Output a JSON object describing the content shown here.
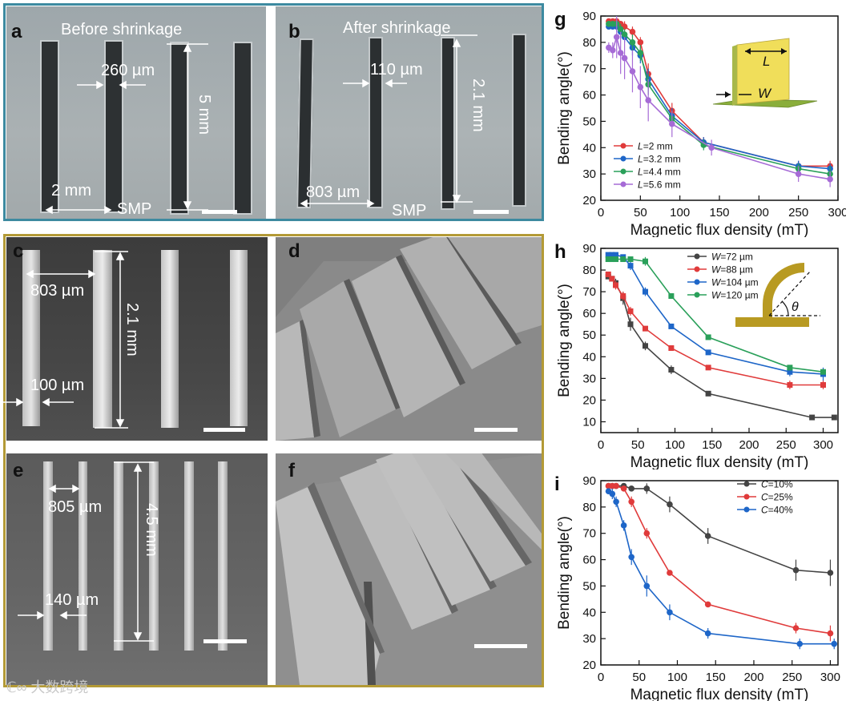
{
  "panels": {
    "a": {
      "label": "a",
      "title": "Before shrinkage",
      "gap": "260 µm",
      "height": "5 mm",
      "spacing": "2 mm",
      "material": "SMP"
    },
    "b": {
      "label": "b",
      "title": "After shrinkage",
      "gap": "110 µm",
      "height": "2.1 mm",
      "spacing": "803 µm",
      "material": "SMP"
    },
    "c": {
      "label": "c",
      "spacing": "803 µm",
      "height": "2.1 mm",
      "width": "100 µm"
    },
    "d": {
      "label": "d"
    },
    "e": {
      "label": "e",
      "spacing": "805 µm",
      "height": "4.5 mm",
      "width": "140 µm"
    },
    "f": {
      "label": "f"
    }
  },
  "watermark": "大数跨境",
  "chart_data": [
    {
      "label": "g",
      "type": "line",
      "xlabel": "Magnetic flux density (mT)",
      "ylabel": "Bending angle(°)",
      "xlim": [
        0,
        300
      ],
      "ylim": [
        20,
        90
      ],
      "xticks": [
        "0",
        "50",
        "100",
        "150",
        "200",
        "250",
        "300"
      ],
      "yticks": [
        "20",
        "30",
        "40",
        "50",
        "60",
        "70",
        "80",
        "90"
      ],
      "series": [
        {
          "name": "L=2 mm",
          "prefix": "L",
          "suffix": "=2 mm",
          "color": "#e03b3b",
          "x": [
            10,
            15,
            20,
            25,
            30,
            40,
            50,
            60,
            90,
            130,
            250,
            290
          ],
          "y": [
            88,
            88,
            88,
            87,
            86,
            84,
            80,
            68,
            54,
            42,
            33,
            33
          ],
          "err": [
            1,
            1,
            1,
            1,
            2,
            2,
            2,
            4,
            3,
            2,
            2,
            2
          ]
        },
        {
          "name": "L=3.2 mm",
          "prefix": "L",
          "suffix": "=3.2 mm",
          "color": "#1e66c8",
          "x": [
            10,
            15,
            20,
            25,
            30,
            40,
            50,
            60,
            90,
            130,
            250,
            290
          ],
          "y": [
            86,
            86,
            86,
            84,
            82,
            78,
            75,
            66,
            52,
            42,
            33,
            32
          ],
          "err": [
            1,
            1,
            2,
            2,
            2,
            3,
            3,
            4,
            3,
            2,
            2,
            2
          ]
        },
        {
          "name": "L=4.4 mm",
          "prefix": "L",
          "suffix": "=4.4 mm",
          "color": "#2aa05a",
          "x": [
            10,
            15,
            20,
            25,
            30,
            40,
            50,
            60,
            90,
            130,
            250,
            290
          ],
          "y": [
            87,
            87,
            87,
            85,
            83,
            80,
            76,
            64,
            51,
            41,
            32,
            30
          ],
          "err": [
            1,
            1,
            1,
            2,
            2,
            3,
            3,
            4,
            3,
            2,
            2,
            3
          ]
        },
        {
          "name": "L=5.6 mm",
          "prefix": "L",
          "suffix": "=5.6 mm",
          "color": "#a66bd6",
          "x": [
            10,
            15,
            20,
            25,
            30,
            40,
            50,
            60,
            90,
            140,
            250,
            290
          ],
          "y": [
            78,
            77,
            82,
            76,
            74,
            69,
            63,
            58,
            49,
            40,
            30,
            28
          ],
          "err": [
            2,
            3,
            8,
            8,
            8,
            8,
            8,
            8,
            5,
            3,
            3,
            3
          ]
        }
      ],
      "inset": {
        "labels": [
          "L",
          "W"
        ]
      }
    },
    {
      "label": "h",
      "type": "line",
      "xlabel": "Magnetic flux density (mT)",
      "ylabel": "Bending angle(°)",
      "xlim": [
        0,
        320
      ],
      "ylim": [
        5,
        90
      ],
      "xticks": [
        "0",
        "50",
        "100",
        "150",
        "200",
        "250",
        "300"
      ],
      "yticks": [
        "10",
        "20",
        "30",
        "40",
        "50",
        "60",
        "70",
        "80",
        "90"
      ],
      "series": [
        {
          "name": "W=72 µm",
          "prefix": "W",
          "suffix": "=72 µm",
          "color": "#444444",
          "x": [
            10,
            15,
            20,
            30,
            40,
            60,
            95,
            145,
            285,
            315
          ],
          "y": [
            77,
            76,
            74,
            67,
            55,
            45,
            34,
            23,
            12,
            12
          ],
          "err": [
            1,
            1,
            2,
            3,
            3,
            2,
            2,
            1,
            1,
            1
          ]
        },
        {
          "name": "W=88 µm",
          "prefix": "W",
          "suffix": "=88 µm",
          "color": "#e03b3b",
          "x": [
            10,
            15,
            20,
            30,
            40,
            60,
            95,
            145,
            255,
            300
          ],
          "y": [
            78,
            76,
            73,
            68,
            61,
            53,
            44,
            35,
            27,
            27
          ],
          "err": [
            1,
            1,
            2,
            2,
            2,
            1,
            1,
            1,
            2,
            2
          ]
        },
        {
          "name": "W=104 µm",
          "prefix": "W",
          "suffix": "=104 µm",
          "color": "#1e66c8",
          "x": [
            10,
            15,
            20,
            30,
            40,
            60,
            95,
            145,
            255,
            300
          ],
          "y": [
            87,
            87,
            87,
            86,
            82,
            70,
            54,
            42,
            33,
            32
          ],
          "err": [
            1,
            1,
            1,
            1,
            2,
            2,
            1,
            1,
            2,
            3
          ]
        },
        {
          "name": "W=120 µm",
          "prefix": "W",
          "suffix": "=120 µm",
          "color": "#2aa05a",
          "x": [
            10,
            15,
            20,
            30,
            40,
            60,
            95,
            145,
            255,
            300
          ],
          "y": [
            85,
            85,
            85,
            85,
            85,
            84,
            68,
            49,
            35,
            33
          ],
          "err": [
            1,
            1,
            1,
            1,
            1,
            2,
            1,
            1,
            1,
            1
          ]
        }
      ],
      "inset": {
        "labels": [
          "θ"
        ]
      }
    },
    {
      "label": "i",
      "type": "line",
      "xlabel": "Magnetic flux density (mT)",
      "ylabel": "Bending angle(°)",
      "xlim": [
        0,
        310
      ],
      "ylim": [
        20,
        90
      ],
      "xticks": [
        "0",
        "50",
        "100",
        "150",
        "200",
        "250",
        "300"
      ],
      "yticks": [
        "20",
        "30",
        "40",
        "50",
        "60",
        "70",
        "80",
        "90"
      ],
      "series": [
        {
          "name": "C=10%",
          "prefix": "C",
          "suffix": "=10%",
          "color": "#444444",
          "x": [
            10,
            15,
            20,
            30,
            40,
            60,
            90,
            140,
            255,
            300
          ],
          "y": [
            88,
            88,
            88,
            88,
            87,
            87,
            81,
            69,
            56,
            55
          ],
          "err": [
            1,
            1,
            1,
            1,
            1,
            2,
            3,
            3,
            4,
            5
          ]
        },
        {
          "name": "C=25%",
          "prefix": "C",
          "suffix": "=25%",
          "color": "#e03b3b",
          "x": [
            10,
            15,
            20,
            30,
            40,
            60,
            90,
            140,
            255,
            300
          ],
          "y": [
            88,
            88,
            88,
            87,
            82,
            70,
            55,
            43,
            34,
            32
          ],
          "err": [
            1,
            1,
            1,
            1,
            2,
            2,
            1,
            1,
            2,
            3
          ]
        },
        {
          "name": "C=40%",
          "prefix": "C",
          "suffix": "=40%",
          "color": "#1e66c8",
          "x": [
            10,
            15,
            20,
            30,
            40,
            60,
            90,
            140,
            260,
            305
          ],
          "y": [
            86,
            85,
            82,
            73,
            61,
            50,
            40,
            32,
            28,
            28
          ],
          "err": [
            1,
            2,
            2,
            2,
            3,
            4,
            3,
            2,
            2,
            2
          ]
        }
      ]
    }
  ]
}
